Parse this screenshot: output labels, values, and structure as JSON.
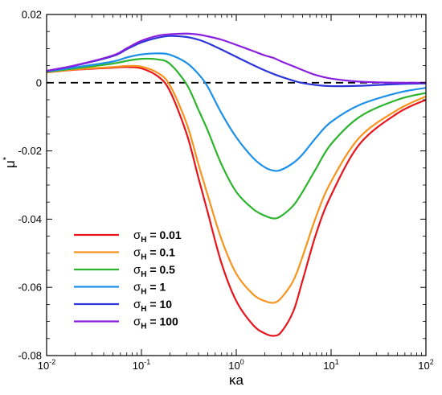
{
  "chart_data": {
    "type": "line",
    "xscale": "log",
    "xlim": [
      0.01,
      100
    ],
    "ylim": [
      -0.08,
      0.02
    ],
    "xlabel": "κa",
    "ylabel": "μ",
    "ylabel_superscript": "*",
    "x_ticks": [
      {
        "value": 0.01,
        "base": "10",
        "exp": "-2"
      },
      {
        "value": 0.1,
        "base": "10",
        "exp": "-1"
      },
      {
        "value": 1,
        "base": "10",
        "exp": "0"
      },
      {
        "value": 10,
        "base": "10",
        "exp": "1"
      },
      {
        "value": 100,
        "base": "10",
        "exp": "2"
      }
    ],
    "y_ticks": [
      {
        "value": 0.02,
        "label": "0.02"
      },
      {
        "value": 0.0,
        "label": "0"
      },
      {
        "value": -0.02,
        "label": "-0.02"
      },
      {
        "value": -0.04,
        "label": "-0.04"
      },
      {
        "value": -0.06,
        "label": "-0.06"
      },
      {
        "value": -0.08,
        "label": "-0.08"
      }
    ],
    "reference_line": {
      "y": 0,
      "style": "dashed"
    },
    "legend": {
      "placement": "bottom-left"
    },
    "x": [
      0.01,
      0.02,
      0.05,
      0.07,
      0.1,
      0.15,
      0.2,
      0.3,
      0.4,
      0.5,
      0.7,
      1,
      1.5,
      2,
      2.5,
      3,
      4,
      5,
      7,
      10,
      20,
      50,
      100
    ],
    "series": [
      {
        "name_main": "σ",
        "name_sub": "H",
        "name_rest": " = 0.01",
        "color": "#e8141c",
        "values": [
          0.003,
          0.0038,
          0.0044,
          0.0046,
          0.0042,
          0.0018,
          -0.0025,
          -0.015,
          -0.028,
          -0.038,
          -0.053,
          -0.064,
          -0.071,
          -0.0735,
          -0.0742,
          -0.073,
          -0.067,
          -0.058,
          -0.044,
          -0.033,
          -0.018,
          -0.009,
          -0.005
        ]
      },
      {
        "name_main": "σ",
        "name_sub": "H",
        "name_rest": " = 0.1",
        "color": "#f7941d",
        "values": [
          0.003,
          0.0039,
          0.0046,
          0.0049,
          0.0047,
          0.0028,
          -0.0008,
          -0.012,
          -0.024,
          -0.033,
          -0.046,
          -0.056,
          -0.062,
          -0.064,
          -0.0645,
          -0.063,
          -0.058,
          -0.051,
          -0.039,
          -0.029,
          -0.016,
          -0.008,
          -0.004
        ]
      },
      {
        "name_main": "σ",
        "name_sub": "H",
        "name_rest": " = 0.5",
        "color": "#2cb52c",
        "values": [
          0.0032,
          0.0042,
          0.0056,
          0.0064,
          0.007,
          0.0068,
          0.0055,
          -0.0005,
          -0.008,
          -0.014,
          -0.024,
          -0.032,
          -0.037,
          -0.039,
          -0.0398,
          -0.039,
          -0.036,
          -0.032,
          -0.025,
          -0.018,
          -0.01,
          -0.005,
          -0.003
        ]
      },
      {
        "name_main": "σ",
        "name_sub": "H",
        "name_rest": " = 1",
        "color": "#1e90e8",
        "values": [
          0.0033,
          0.0045,
          0.0062,
          0.0074,
          0.0083,
          0.0086,
          0.0082,
          0.0058,
          0.0025,
          -0.0012,
          -0.009,
          -0.016,
          -0.022,
          -0.0248,
          -0.0258,
          -0.0255,
          -0.0235,
          -0.021,
          -0.016,
          -0.0115,
          -0.0065,
          -0.003,
          -0.0015
        ]
      },
      {
        "name_main": "σ",
        "name_sub": "H",
        "name_rest": " = 10",
        "color": "#2b35d8",
        "values": [
          0.0034,
          0.005,
          0.0078,
          0.0098,
          0.0118,
          0.0132,
          0.0137,
          0.0134,
          0.0126,
          0.0116,
          0.0097,
          0.0076,
          0.0052,
          0.0036,
          0.0025,
          0.0017,
          0.0006,
          -0.0001,
          -0.0007,
          -0.001,
          -0.0009,
          -0.0004,
          -0.0002
        ]
      },
      {
        "name_main": "σ",
        "name_sub": "H",
        "name_rest": " = 100",
        "color": "#8a1fe0",
        "values": [
          0.0035,
          0.0051,
          0.008,
          0.0101,
          0.0123,
          0.0138,
          0.0142,
          0.0144,
          0.0141,
          0.0136,
          0.0126,
          0.0111,
          0.0093,
          0.008,
          0.0072,
          0.0062,
          0.0048,
          0.0037,
          0.0022,
          0.0012,
          0.0003,
          0.0,
          0.0
        ]
      }
    ]
  }
}
